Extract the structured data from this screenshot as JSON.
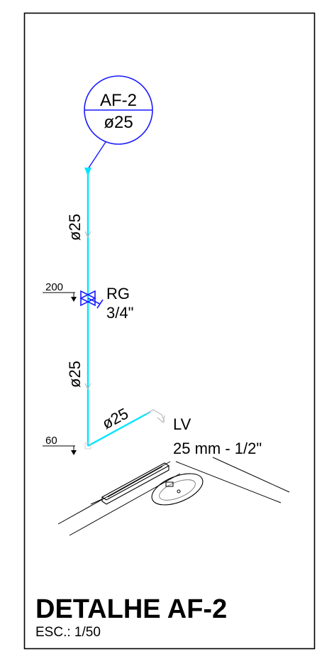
{
  "tag": {
    "code": "AF-2",
    "diameter": "ø25"
  },
  "pipe_labels": {
    "upper": "ø25",
    "lower": "ø25",
    "branch": "ø25"
  },
  "valve": {
    "name": "RG",
    "size": "3/4\""
  },
  "levels": {
    "valve": "200",
    "outlet": "60"
  },
  "fixture": {
    "name": "LV",
    "spec": "25 mm - 1/2\""
  },
  "title": {
    "main": "DETALHE AF-2",
    "scale": "ESC.: 1/50"
  },
  "colors": {
    "pipe": "#00e5ff",
    "tag": "#1a1aff",
    "frame": "#000000"
  }
}
